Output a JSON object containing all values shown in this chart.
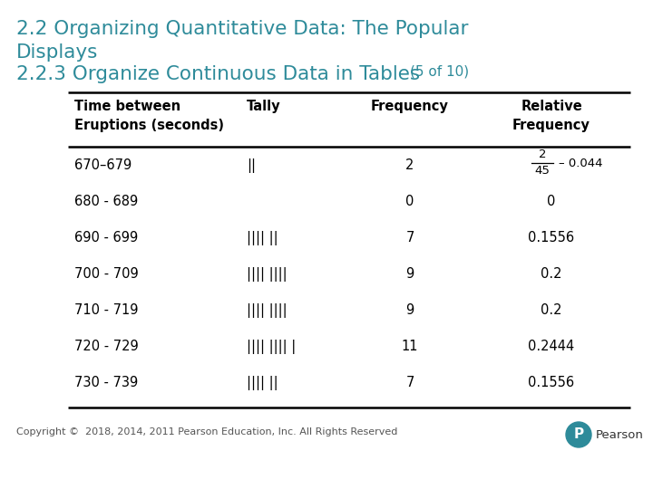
{
  "title_line1a": "2.2 Organizing Quantitative Data: The Popular",
  "title_line1b": "Displays",
  "title_line2": "2.2.3 Organize Continuous Data in Tables",
  "title_suffix": "(5 of 10)",
  "teal_color": "#2e8b9a",
  "bg_color": "#ffffff",
  "copyright": "Copyright ©  2018, 2014, 2011 Pearson Education, Inc. All Rights Reserved",
  "rows": [
    [
      "670–679",
      "||",
      "2",
      "frac_2_45"
    ],
    [
      "680 - 689",
      "",
      "0",
      "0"
    ],
    [
      "690 - 699",
      "|||| ||",
      "7",
      "0.1556"
    ],
    [
      "700 - 709",
      "|||| ||||",
      "9",
      "0.2"
    ],
    [
      "710 - 719",
      "|||| ||||",
      "9",
      "0.2"
    ],
    [
      "720 - 729",
      "|||| |||| |",
      "11",
      "0.2444"
    ],
    [
      "730 - 739",
      "|||| ||",
      "7",
      "0.1556"
    ]
  ]
}
